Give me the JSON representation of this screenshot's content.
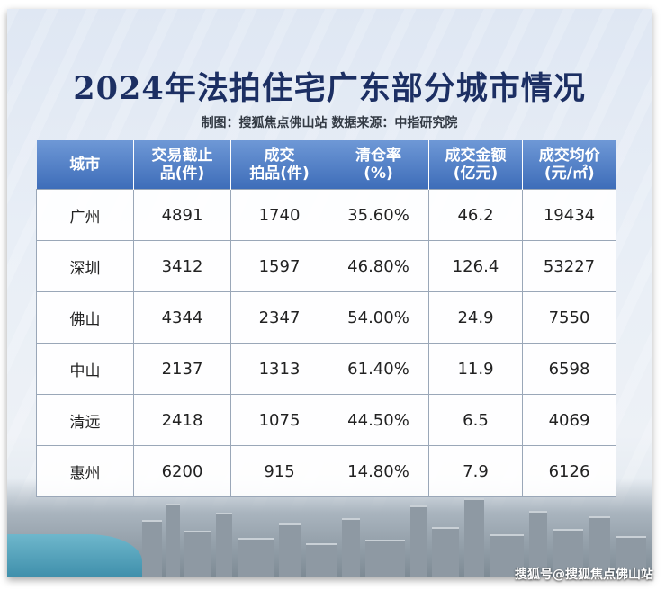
{
  "title": "2024年法拍住宅广东部分城市情况",
  "subtitle": "制图：搜狐焦点佛山站 数据来源：中指研究院",
  "table": {
    "headers": [
      {
        "line1": "城市",
        "line2": ""
      },
      {
        "line1": "交易截止",
        "line2": "品(件)"
      },
      {
        "line1": "成交",
        "line2": "拍品(件)"
      },
      {
        "line1": "清仓率",
        "line2": "(%)"
      },
      {
        "line1": "成交金额",
        "line2": "(亿元)"
      },
      {
        "line1": "成交均价",
        "line2": "(元/㎡)"
      }
    ],
    "rows": [
      [
        "广州",
        "4891",
        "1740",
        "35.60%",
        "46.2",
        "19434"
      ],
      [
        "深圳",
        "3412",
        "1597",
        "46.80%",
        "126.4",
        "53227"
      ],
      [
        "佛山",
        "4344",
        "2347",
        "54.00%",
        "24.9",
        "7550"
      ],
      [
        "中山",
        "2137",
        "1313",
        "61.40%",
        "11.9",
        "6598"
      ],
      [
        "清远",
        "2418",
        "1075",
        "44.50%",
        "6.5",
        "4069"
      ],
      [
        "惠州",
        "6200",
        "915",
        "14.80%",
        "7.9",
        "6126"
      ]
    ]
  },
  "watermark": "搜狐号@搜狐焦点佛山站"
}
